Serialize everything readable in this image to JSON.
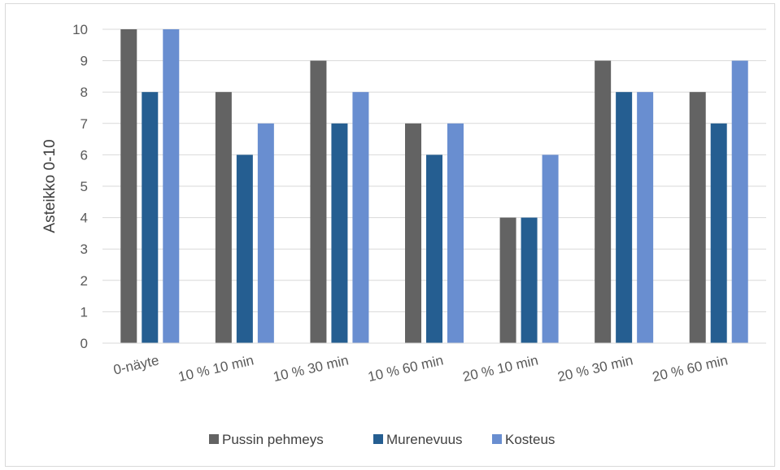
{
  "chart_data": {
    "type": "bar",
    "ylabel": "Asteikko 0-10",
    "xlabel": "",
    "ylim": [
      0,
      10
    ],
    "yticks": [
      "0",
      "1",
      "2",
      "3",
      "4",
      "5",
      "6",
      "7",
      "8",
      "9",
      "10"
    ],
    "grid": true,
    "legend_position": "bottom",
    "categories": [
      "0-näyte",
      "10 % 10 min",
      "10 % 30 min",
      "10 % 60 min",
      "20 % 10 min",
      "20 % 30 min",
      "20 % 60 min"
    ],
    "series": [
      {
        "name": "Pussin pehmeys",
        "color": "#636363",
        "values": [
          10,
          8,
          9,
          7,
          4,
          9,
          8
        ]
      },
      {
        "name": "Murenevuus",
        "color": "#255e91",
        "values": [
          8,
          6,
          7,
          6,
          4,
          8,
          7
        ]
      },
      {
        "name": "Kosteus",
        "color": "#698ed0",
        "values": [
          10,
          7,
          8,
          7,
          6,
          8,
          9
        ]
      }
    ]
  }
}
